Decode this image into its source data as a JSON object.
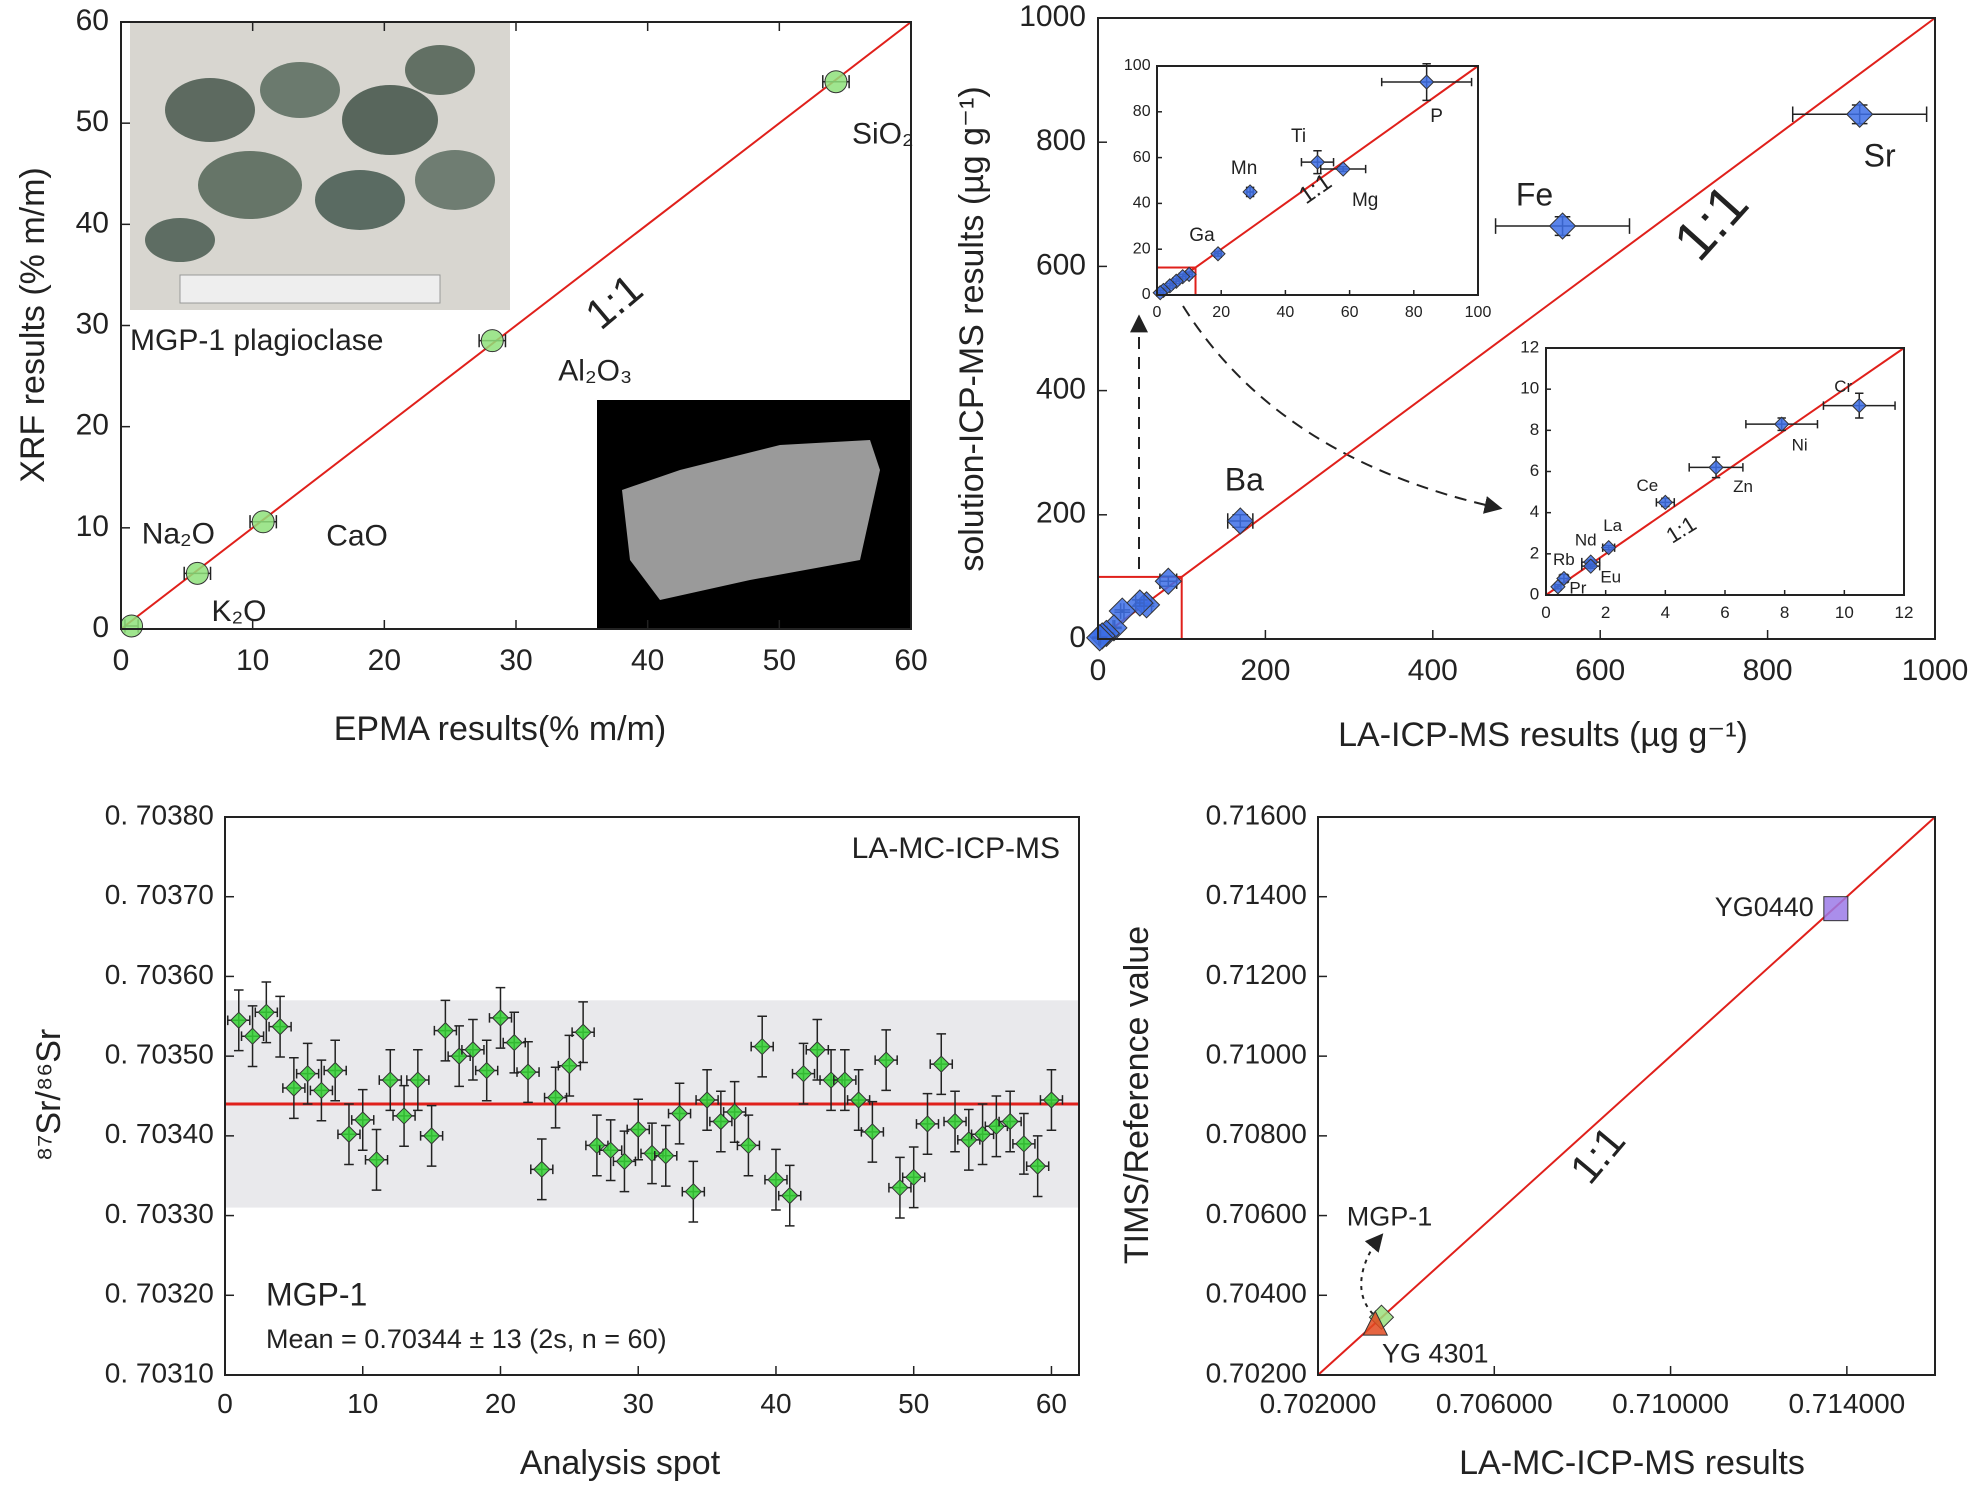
{
  "chart_data": [
    {
      "type": "scatter",
      "x": [
        0.8,
        5.8,
        10.8,
        28.2,
        54.3
      ],
      "values": [
        0.3,
        5.5,
        10.6,
        28.5,
        54.1
      ],
      "x_errors": [
        0.5,
        1,
        1,
        1,
        1
      ],
      "labels": [
        "K₂O",
        "Na₂O",
        "CaO",
        "Al₂O₃",
        "SiO₂"
      ],
      "xlim": [
        0,
        60
      ],
      "ylim": [
        0,
        60
      ],
      "xticks": [
        0,
        10,
        20,
        30,
        40,
        50,
        60
      ],
      "yticks": [
        0,
        10,
        20,
        30,
        40,
        50,
        60
      ],
      "xlabel": "EPMA results(% m/m)",
      "ylabel": "XRF results (% m/m)",
      "annotations": [
        "1:1",
        "MGP-1 plagioclase"
      ],
      "color": "#8ee07a",
      "marker": "circle",
      "identity_line": true,
      "line_color": "#e0201b"
    },
    {
      "type": "scatter",
      "x": [
        910,
        555,
        170,
        84,
        58,
        50,
        29,
        19,
        10,
        5,
        2
      ],
      "values": [
        845,
        665,
        190,
        93,
        55,
        58,
        45,
        18,
        9,
        5,
        2
      ],
      "x_errors": [
        80,
        80,
        15,
        10,
        6,
        5,
        2,
        1,
        1,
        1,
        1
      ],
      "y_errors": [
        15,
        15,
        10,
        8,
        2,
        5,
        2,
        1,
        1,
        1,
        1
      ],
      "labels": [
        "Sr",
        "Fe",
        "Ba",
        null,
        null,
        null,
        null,
        null,
        null,
        null,
        null
      ],
      "xlim": [
        0,
        1000
      ],
      "ylim": [
        0,
        1000
      ],
      "xticks": [
        0,
        200,
        400,
        600,
        800,
        1000
      ],
      "yticks": [
        0,
        200,
        400,
        600,
        800,
        1000
      ],
      "xlabel": "LA-ICP-MS results (µg g⁻¹)",
      "ylabel": "solution-ICP-MS results (µg g⁻¹)",
      "annotations": [
        "1:1"
      ],
      "color": "#3d6fe6",
      "marker": "diamond",
      "identity_line": true,
      "line_color": "#e0201b"
    },
    {
      "type": "scatter",
      "x": [
        84,
        50,
        58,
        29,
        19,
        10,
        8,
        6,
        4,
        2,
        1
      ],
      "values": [
        93,
        58,
        55,
        45,
        18,
        9,
        8,
        6,
        4,
        2,
        1
      ],
      "x_errors": [
        14,
        5,
        7,
        1,
        1,
        1,
        1,
        1,
        1,
        1,
        1
      ],
      "y_errors": [
        8,
        5,
        1,
        2,
        1,
        1,
        1,
        1,
        1,
        1,
        1
      ],
      "labels": [
        "P",
        "Ti",
        "Mg",
        "Mn",
        "Ga",
        null,
        null,
        null,
        null,
        null,
        null
      ],
      "xlim": [
        0,
        100
      ],
      "ylim": [
        0,
        100
      ],
      "xticks": [
        0,
        20,
        40,
        60,
        80,
        100
      ],
      "yticks": [
        0,
        20,
        40,
        60,
        80,
        100
      ],
      "annotations": [
        "1:1"
      ],
      "color": "#3d6fe6",
      "marker": "diamond",
      "identity_line": true,
      "line_color": "#e0201b"
    },
    {
      "type": "scatter",
      "x": [
        10.5,
        7.9,
        5.7,
        4.0,
        2.1,
        1.5,
        1.5,
        0.6,
        0.4
      ],
      "values": [
        9.2,
        8.3,
        6.2,
        4.5,
        2.3,
        1.6,
        1.4,
        0.8,
        0.4
      ],
      "x_errors": [
        1.2,
        1.2,
        0.9,
        0.3,
        0.2,
        0.3,
        0.3,
        0.15,
        0.1
      ],
      "y_errors": [
        0.6,
        0.3,
        0.5,
        0.2,
        0.1,
        0.1,
        0.1,
        0.2,
        0.1
      ],
      "labels": [
        "Cr",
        "Ni",
        "Zn",
        "Ce",
        "La",
        "Nd",
        "Eu",
        "Rb",
        "Pr"
      ],
      "xlim": [
        0,
        12
      ],
      "ylim": [
        0,
        12
      ],
      "xticks": [
        0,
        2,
        4,
        6,
        8,
        10,
        12
      ],
      "yticks": [
        0,
        2,
        4,
        6,
        8,
        10,
        12
      ],
      "annotations": [
        "1:1"
      ],
      "color": "#3d6fe6",
      "marker": "diamond",
      "identity_line": true,
      "line_color": "#e0201b"
    },
    {
      "type": "scatter",
      "x": [
        1,
        2,
        3,
        4,
        5,
        6,
        7,
        8,
        9,
        10,
        11,
        12,
        13,
        14,
        15,
        16,
        17,
        18,
        19,
        20,
        21,
        22,
        23,
        24,
        25,
        26,
        27,
        28,
        29,
        30,
        31,
        32,
        33,
        34,
        35,
        36,
        37,
        38,
        39,
        40,
        41,
        42,
        43,
        44,
        45,
        46,
        47,
        48,
        49,
        50,
        51,
        52,
        53,
        54,
        55,
        56,
        57,
        58,
        59,
        60
      ],
      "values": [
        0.703545,
        0.703525,
        0.703555,
        0.703537,
        0.70346,
        0.703478,
        0.703457,
        0.703482,
        0.703402,
        0.70342,
        0.70337,
        0.70347,
        0.703425,
        0.70347,
        0.7034,
        0.703532,
        0.7035,
        0.703508,
        0.703482,
        0.703548,
        0.703517,
        0.70348,
        0.703358,
        0.703448,
        0.703488,
        0.70353,
        0.703388,
        0.703382,
        0.703368,
        0.703408,
        0.703378,
        0.703375,
        0.703428,
        0.70333,
        0.703445,
        0.703418,
        0.70343,
        0.703388,
        0.703512,
        0.703345,
        0.703325,
        0.703478,
        0.703508,
        0.70347,
        0.70347,
        0.703445,
        0.703405,
        0.703495,
        0.703335,
        0.703348,
        0.703415,
        0.70349,
        0.703418,
        0.703395,
        0.703402,
        0.703412,
        0.703418,
        0.70339,
        0.703362,
        0.703445
      ],
      "x_error": 0.8,
      "y_error": 3.8e-05,
      "mean": 0.70344,
      "band": [
        0.70331,
        0.70357
      ],
      "xlim": [
        0,
        62
      ],
      "ylim": [
        0.7031,
        0.7038
      ],
      "xticks": [
        0,
        10,
        20,
        30,
        40,
        50,
        60
      ],
      "yticks": [
        {
          "value": 0.7031,
          "label": "0. 70310"
        },
        {
          "value": 0.7032,
          "label": "0. 70320"
        },
        {
          "value": 0.7033,
          "label": "0. 70330"
        },
        {
          "value": 0.7034,
          "label": "0. 70340"
        },
        {
          "value": 0.7035,
          "label": "0. 70350"
        },
        {
          "value": 0.7036,
          "label": "0. 70360"
        },
        {
          "value": 0.7037,
          "label": "0. 70370"
        },
        {
          "value": 0.7038,
          "label": "0. 70380"
        }
      ],
      "xlabel": "Analysis spot",
      "ylabel": "⁸⁷Sr/⁸⁶Sr",
      "annotations": [
        "LA-MC-ICP-MS",
        "MGP-1",
        "Mean = 0.70344 ± 13 (2s, n = 60)"
      ],
      "color": "#35d235",
      "marker": "diamond",
      "line_color": "#e0201b",
      "band_color": "#e9e9ec"
    },
    {
      "type": "scatter",
      "x": [
        0.71375,
        0.70344,
        0.7033
      ],
      "values": [
        0.7137,
        0.70345,
        0.7033
      ],
      "labels": [
        "YG0440",
        "MGP-1",
        "YG 4301"
      ],
      "colors": [
        "#9b7ae8",
        "#9ae07e",
        "#e04a20"
      ],
      "markers": [
        "square",
        "diamond",
        "triangle"
      ],
      "xlim": [
        0.702,
        0.716
      ],
      "ylim": [
        0.702,
        0.716
      ],
      "xticks": [
        {
          "value": 0.702,
          "label": "0.702000"
        },
        {
          "value": 0.706,
          "label": "0.706000"
        },
        {
          "value": 0.71,
          "label": "0.710000"
        },
        {
          "value": 0.714,
          "label": "0.714000"
        }
      ],
      "yticks": [
        {
          "value": 0.702,
          "label": "0.70200"
        },
        {
          "value": 0.704,
          "label": "0.70400"
        },
        {
          "value": 0.706,
          "label": "0.70600"
        },
        {
          "value": 0.708,
          "label": "0.70800"
        },
        {
          "value": 0.71,
          "label": "0.71000"
        },
        {
          "value": 0.712,
          "label": "0.71200"
        },
        {
          "value": 0.714,
          "label": "0.71400"
        },
        {
          "value": 0.716,
          "label": "0.71600"
        }
      ],
      "xlabel": "LA-MC-ICP-MS results",
      "ylabel": "TIMS/Reference value",
      "annotations": [
        "1:1"
      ],
      "identity_line": true,
      "line_color": "#e0201b"
    }
  ]
}
